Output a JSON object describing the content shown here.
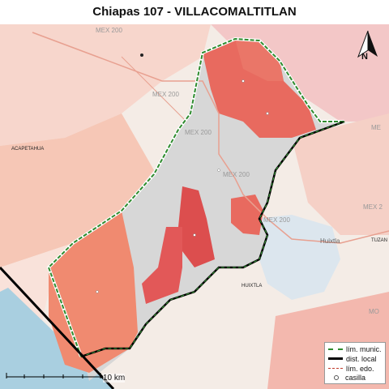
{
  "title": "Chiapas 107 - VILLACOMALTITLAN",
  "map_labels": {
    "road_1": "MEX 200",
    "road_2": "MEX 200",
    "road_3": "MEX 200",
    "road_4": "MEX 200",
    "road_5": "MEX 200",
    "road_6": "MEX 2",
    "place_acapetahua": "ACAPETAHUA",
    "place_huixtla": "HUIXTLA",
    "place_tuzan": "TUZAN",
    "place_huixtla_town": "Huixtla",
    "partial_1": "ME",
    "partial_2": "MO"
  },
  "legend": {
    "items": [
      {
        "label": "lím. munic.",
        "color": "#2e8b2e"
      },
      {
        "label": "dist. local",
        "color": "#000000"
      },
      {
        "label": "lím. edo.",
        "color": "#c0392b"
      },
      {
        "label": "casilla",
        "color": "#ffffff"
      }
    ]
  },
  "scale_label": "10 km",
  "north_label": "N",
  "colors": {
    "sea": "#a9cfe0",
    "land": "#f4ece6",
    "section_high": "#e05555",
    "section_mid": "#ef8a7a",
    "section_low": "#f2b3a3",
    "district_gray": "#d7d7d7"
  }
}
